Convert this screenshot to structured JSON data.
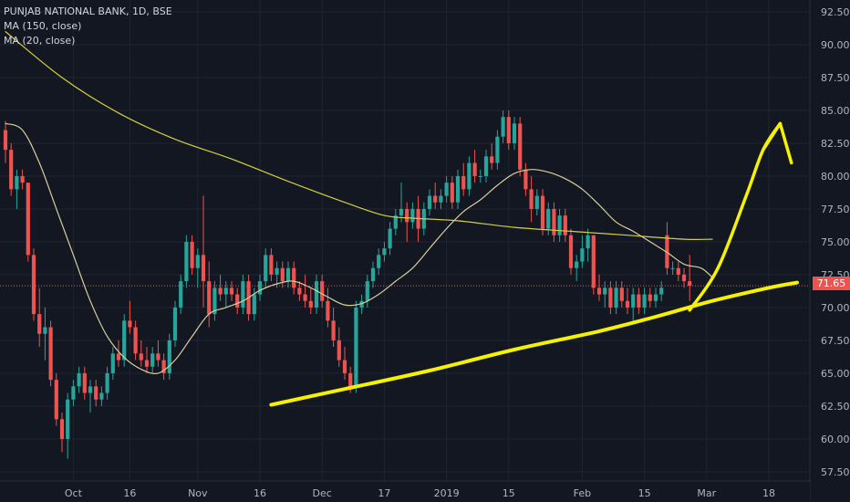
{
  "legend": {
    "title": "PUNJAB NATIONAL BANK, 1D, BSE",
    "ma150": "MA (150, close)",
    "ma20": "MA (20, close)"
  },
  "colors": {
    "background": "#131722",
    "grid": "#1f2433",
    "up": "#26a69a",
    "down": "#ef5350",
    "ma150": "#d4cf3f",
    "ma20": "#d8cf9a",
    "annotation": "#f5f200",
    "axis_text": "#b2b5be",
    "last_price_line": "#ef5350"
  },
  "last_price": {
    "label": "71.65",
    "value": 71.65
  },
  "chart_data": {
    "type": "candlestick",
    "title": "PUNJAB NATIONAL BANK, 1D, BSE",
    "ylim": [
      56.8,
      93.4
    ],
    "y_ticks": [
      57.5,
      60.0,
      62.5,
      65.0,
      67.5,
      70.0,
      72.5,
      75.0,
      77.5,
      80.0,
      82.5,
      85.0,
      87.5,
      90.0,
      92.5
    ],
    "x_tick_labels": [
      "Oct",
      "16",
      "Nov",
      "16",
      "Dec",
      "17",
      "2019",
      "15",
      "Feb",
      "15",
      "Mar",
      "18"
    ],
    "x_ticks": [
      {
        "label": "Oct",
        "bar": 12
      },
      {
        "label": "16",
        "bar": 22
      },
      {
        "label": "Nov",
        "bar": 34
      },
      {
        "label": "16",
        "bar": 45
      },
      {
        "label": "Dec",
        "bar": 56
      },
      {
        "label": "17",
        "bar": 67
      },
      {
        "label": "2019",
        "bar": 78
      },
      {
        "label": "15",
        "bar": 89
      },
      {
        "label": "Feb",
        "bar": 102
      },
      {
        "label": "15",
        "bar": 113
      },
      {
        "label": "Mar",
        "bar": 124
      },
      {
        "label": "18",
        "bar": 135
      }
    ],
    "bar_count_span": 145,
    "candles": [
      [
        83.5,
        84.2,
        81.0,
        82.0
      ],
      [
        82.0,
        82.5,
        78.5,
        79.0
      ],
      [
        79.0,
        80.5,
        77.5,
        80.0
      ],
      [
        80.0,
        80.5,
        79.0,
        79.5
      ],
      [
        79.5,
        79.5,
        73.5,
        74.0
      ],
      [
        74.0,
        74.5,
        69.0,
        69.5
      ],
      [
        69.5,
        71.5,
        67.0,
        68.0
      ],
      [
        68.0,
        70.0,
        66.0,
        68.5
      ],
      [
        68.5,
        69.0,
        64.0,
        64.5
      ],
      [
        64.5,
        65.0,
        61.0,
        61.5
      ],
      [
        61.5,
        62.0,
        59.0,
        60.0
      ],
      [
        60.0,
        63.5,
        58.5,
        63.0
      ],
      [
        63.0,
        64.5,
        62.5,
        64.0
      ],
      [
        64.0,
        65.5,
        63.5,
        65.0
      ],
      [
        65.0,
        65.5,
        63.0,
        63.5
      ],
      [
        63.5,
        64.5,
        62.0,
        64.0
      ],
      [
        64.0,
        64.5,
        62.5,
        63.0
      ],
      [
        63.0,
        64.0,
        62.5,
        63.5
      ],
      [
        63.5,
        65.5,
        63.0,
        65.0
      ],
      [
        65.0,
        67.0,
        64.5,
        66.5
      ],
      [
        66.5,
        67.5,
        65.5,
        66.0
      ],
      [
        66.0,
        69.5,
        65.5,
        69.0
      ],
      [
        69.0,
        70.5,
        68.0,
        68.5
      ],
      [
        68.5,
        69.0,
        66.0,
        66.5
      ],
      [
        66.5,
        67.5,
        65.5,
        66.0
      ],
      [
        66.0,
        67.0,
        65.0,
        65.5
      ],
      [
        65.5,
        67.0,
        65.0,
        66.5
      ],
      [
        66.5,
        67.5,
        65.5,
        66.0
      ],
      [
        66.0,
        66.5,
        64.5,
        65.0
      ],
      [
        65.0,
        68.0,
        64.5,
        67.5
      ],
      [
        67.5,
        70.5,
        67.0,
        70.0
      ],
      [
        70.0,
        72.5,
        69.5,
        72.0
      ],
      [
        72.0,
        75.5,
        71.5,
        75.0
      ],
      [
        75.0,
        75.5,
        72.5,
        73.0
      ],
      [
        73.0,
        74.5,
        71.5,
        74.0
      ],
      [
        74.0,
        78.5,
        70.0,
        72.0
      ],
      [
        72.0,
        73.5,
        68.5,
        69.5
      ],
      [
        69.5,
        72.0,
        69.0,
        71.5
      ],
      [
        71.5,
        72.5,
        70.5,
        71.0
      ],
      [
        71.0,
        72.0,
        70.0,
        71.5
      ],
      [
        71.5,
        72.0,
        70.5,
        71.0
      ],
      [
        71.0,
        71.5,
        69.5,
        70.0
      ],
      [
        70.0,
        72.5,
        69.5,
        72.0
      ],
      [
        72.0,
        72.5,
        69.0,
        69.5
      ],
      [
        69.5,
        71.5,
        69.0,
        71.0
      ],
      [
        71.0,
        72.5,
        70.5,
        72.0
      ],
      [
        72.0,
        74.5,
        71.5,
        74.0
      ],
      [
        74.0,
        74.5,
        72.0,
        72.5
      ],
      [
        72.5,
        73.5,
        71.5,
        73.0
      ],
      [
        73.0,
        73.5,
        71.5,
        72.0
      ],
      [
        72.0,
        73.5,
        71.5,
        73.0
      ],
      [
        73.0,
        73.5,
        71.0,
        71.5
      ],
      [
        71.5,
        72.0,
        70.5,
        71.0
      ],
      [
        71.0,
        72.5,
        70.0,
        70.5
      ],
      [
        70.5,
        71.5,
        69.5,
        70.0
      ],
      [
        70.0,
        72.5,
        69.5,
        72.0
      ],
      [
        72.0,
        72.5,
        70.0,
        70.5
      ],
      [
        70.5,
        71.5,
        68.5,
        69.0
      ],
      [
        69.0,
        70.0,
        67.0,
        67.5
      ],
      [
        67.5,
        68.5,
        65.5,
        66.0
      ],
      [
        66.0,
        67.0,
        64.5,
        65.0
      ],
      [
        65.0,
        65.5,
        63.5,
        64.0
      ],
      [
        64.0,
        70.5,
        63.5,
        70.0
      ],
      [
        70.0,
        71.0,
        69.5,
        70.5
      ],
      [
        70.5,
        72.5,
        70.0,
        72.0
      ],
      [
        72.0,
        73.5,
        71.5,
        73.0
      ],
      [
        73.0,
        74.5,
        72.5,
        74.0
      ],
      [
        74.0,
        75.0,
        73.5,
        74.5
      ],
      [
        74.5,
        76.5,
        74.0,
        76.0
      ],
      [
        76.0,
        77.5,
        75.5,
        77.0
      ],
      [
        77.0,
        79.5,
        76.5,
        77.5
      ],
      [
        77.5,
        78.0,
        75.0,
        76.5
      ],
      [
        76.5,
        78.0,
        76.0,
        77.5
      ],
      [
        77.5,
        78.5,
        75.0,
        76.0
      ],
      [
        76.0,
        78.0,
        75.5,
        77.5
      ],
      [
        77.5,
        79.0,
        77.0,
        78.5
      ],
      [
        78.5,
        79.5,
        77.5,
        78.0
      ],
      [
        78.0,
        79.0,
        77.5,
        78.5
      ],
      [
        78.5,
        80.0,
        78.0,
        79.5
      ],
      [
        79.5,
        80.0,
        77.5,
        78.0
      ],
      [
        78.0,
        80.5,
        77.5,
        80.0
      ],
      [
        80.0,
        81.0,
        78.5,
        79.0
      ],
      [
        79.0,
        81.5,
        78.5,
        81.0
      ],
      [
        81.0,
        82.0,
        79.5,
        80.0
      ],
      [
        80.0,
        80.5,
        79.5,
        80.0
      ],
      [
        80.0,
        82.0,
        79.5,
        81.5
      ],
      [
        81.5,
        82.5,
        80.5,
        81.0
      ],
      [
        81.0,
        83.5,
        80.5,
        83.0
      ],
      [
        83.0,
        85.0,
        82.5,
        84.5
      ],
      [
        84.5,
        85.0,
        82.0,
        82.5
      ],
      [
        82.5,
        84.5,
        82.0,
        84.0
      ],
      [
        84.0,
        84.5,
        80.0,
        80.5
      ],
      [
        80.5,
        81.0,
        78.5,
        79.0
      ],
      [
        79.0,
        80.0,
        76.5,
        77.5
      ],
      [
        77.5,
        79.0,
        77.0,
        78.5
      ],
      [
        78.5,
        79.0,
        75.5,
        76.0
      ],
      [
        76.0,
        78.0,
        75.5,
        77.5
      ],
      [
        77.5,
        78.0,
        75.0,
        75.5
      ],
      [
        75.5,
        77.5,
        75.0,
        77.0
      ],
      [
        77.0,
        77.5,
        75.0,
        75.5
      ],
      [
        75.5,
        76.0,
        72.5,
        73.0
      ],
      [
        73.0,
        74.0,
        72.0,
        73.5
      ],
      [
        73.5,
        75.5,
        73.0,
        74.5
      ],
      [
        74.5,
        76.0,
        73.5,
        75.5
      ],
      [
        75.5,
        75.5,
        71.0,
        71.5
      ],
      [
        71.5,
        72.5,
        70.5,
        71.0
      ],
      [
        71.0,
        72.0,
        70.0,
        71.5
      ],
      [
        71.5,
        72.0,
        69.5,
        70.0
      ],
      [
        70.0,
        72.0,
        69.5,
        71.5
      ],
      [
        71.5,
        72.0,
        70.0,
        70.5
      ],
      [
        70.5,
        71.5,
        69.5,
        70.0
      ],
      [
        70.0,
        71.5,
        69.0,
        71.0
      ],
      [
        71.0,
        71.5,
        69.5,
        70.0
      ],
      [
        70.0,
        71.5,
        69.5,
        71.0
      ],
      [
        71.0,
        71.5,
        70.0,
        70.5
      ],
      [
        70.5,
        71.5,
        70.0,
        71.0
      ],
      [
        71.0,
        72.0,
        70.5,
        71.5
      ],
      [
        75.5,
        76.5,
        72.5,
        73.0
      ],
      [
        73.0,
        73.5,
        72.5,
        73.0
      ],
      [
        73.0,
        73.5,
        72.0,
        72.5
      ],
      [
        72.5,
        73.0,
        71.5,
        72.0
      ],
      [
        72.0,
        74.0,
        70.5,
        71.65
      ]
    ],
    "ma150": [
      [
        0,
        91.0
      ],
      [
        10,
        87.5
      ],
      [
        20,
        84.8
      ],
      [
        30,
        82.8
      ],
      [
        40,
        81.3
      ],
      [
        50,
        79.6
      ],
      [
        60,
        78.0
      ],
      [
        67,
        77.0
      ],
      [
        72,
        76.8
      ],
      [
        80,
        76.6
      ],
      [
        90,
        76.1
      ],
      [
        100,
        75.8
      ],
      [
        110,
        75.5
      ],
      [
        120,
        75.2
      ],
      [
        125,
        75.2
      ]
    ],
    "ma20": [
      [
        0,
        84.0
      ],
      [
        3,
        83.5
      ],
      [
        6,
        81.0
      ],
      [
        9,
        77.5
      ],
      [
        12,
        74.0
      ],
      [
        15,
        70.5
      ],
      [
        18,
        67.8
      ],
      [
        21,
        66.2
      ],
      [
        24,
        65.3
      ],
      [
        27,
        65.0
      ],
      [
        30,
        66.0
      ],
      [
        33,
        67.8
      ],
      [
        36,
        69.5
      ],
      [
        39,
        70.0
      ],
      [
        42,
        70.5
      ],
      [
        45,
        71.3
      ],
      [
        48,
        71.8
      ],
      [
        51,
        72.0
      ],
      [
        54,
        71.5
      ],
      [
        57,
        70.8
      ],
      [
        60,
        70.2
      ],
      [
        63,
        70.3
      ],
      [
        66,
        71.0
      ],
      [
        69,
        72.0
      ],
      [
        72,
        73.0
      ],
      [
        75,
        74.5
      ],
      [
        78,
        76.0
      ],
      [
        81,
        77.3
      ],
      [
        84,
        78.2
      ],
      [
        87,
        79.3
      ],
      [
        90,
        80.2
      ],
      [
        93,
        80.5
      ],
      [
        96,
        80.3
      ],
      [
        99,
        79.8
      ],
      [
        102,
        79.0
      ],
      [
        105,
        77.8
      ],
      [
        108,
        76.5
      ],
      [
        111,
        75.8
      ],
      [
        114,
        75.0
      ],
      [
        117,
        74.2
      ],
      [
        120,
        73.3
      ],
      [
        123,
        73.0
      ],
      [
        125,
        72.3
      ]
    ],
    "annotations": {
      "support_curve": [
        [
          47,
          62.6
        ],
        [
          60,
          63.8
        ],
        [
          75,
          65.2
        ],
        [
          90,
          66.8
        ],
        [
          105,
          68.2
        ],
        [
          115,
          69.3
        ],
        [
          125,
          70.5
        ],
        [
          135,
          71.5
        ],
        [
          140,
          71.9
        ]
      ],
      "arrow_curve": [
        [
          121,
          69.8
        ],
        [
          126,
          73.0
        ],
        [
          131,
          78.5
        ],
        [
          134,
          82.0
        ],
        [
          137,
          84.0
        ]
      ],
      "arrow_head": [
        [
          134,
          82.0
        ],
        [
          137,
          84.0
        ],
        [
          139,
          81.0
        ]
      ]
    }
  }
}
